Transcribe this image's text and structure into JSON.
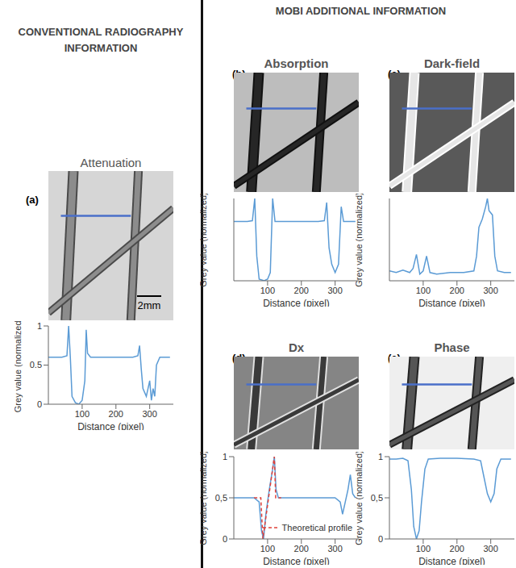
{
  "headings": {
    "left": "CONVENTIONAL RADIOGRAPHY INFORMATION",
    "right": "MOBI ADDITIONAL INFORMATION"
  },
  "scale_bar": "2mm",
  "chart_data": [
    {
      "type": "line",
      "panel": "(a)",
      "title": "Attenuation",
      "x_label": "Distance (pixel)",
      "y_label": "Grey value (normalized)",
      "xlim": [
        0,
        370
      ],
      "xticks": [
        100,
        200,
        300
      ],
      "ylim": [
        0,
        1
      ],
      "yticks": [
        0,
        {
          "value": 0.5,
          "label": "0.5"
        },
        1
      ],
      "grid": false,
      "series": [
        {
          "color": "#5b9bd5",
          "line_style": "solid",
          "x": [
            0,
            20,
            40,
            55,
            60,
            65,
            70,
            80,
            90,
            100,
            108,
            112,
            116,
            125,
            150,
            200,
            250,
            265,
            270,
            275,
            280,
            290,
            300,
            305,
            310,
            315,
            320,
            330,
            350,
            360
          ],
          "values": [
            0.6,
            0.6,
            0.6,
            0.62,
            1.0,
            0.6,
            0.1,
            0.02,
            0.0,
            0.05,
            0.3,
            0.95,
            0.65,
            0.6,
            0.6,
            0.6,
            0.6,
            0.62,
            0.75,
            0.45,
            0.2,
            0.1,
            0.3,
            0.05,
            0.2,
            0.1,
            0.5,
            0.6,
            0.6,
            0.6
          ]
        }
      ]
    },
    {
      "type": "line",
      "panel": "(b)",
      "title": "Absorption",
      "x_label": "Distance (pixel)",
      "y_label": "Grey value (normalized)",
      "xlim": [
        0,
        370
      ],
      "xticks": [
        100,
        200,
        300
      ],
      "ylim": [
        0,
        1
      ],
      "yticks": [
        1
      ],
      "grid": false,
      "series": [
        {
          "color": "#5b9bd5",
          "line_style": "solid",
          "x": [
            0,
            20,
            40,
            55,
            62,
            68,
            75,
            90,
            100,
            108,
            115,
            122,
            150,
            200,
            250,
            268,
            275,
            282,
            290,
            300,
            310,
            318,
            325,
            340,
            360
          ],
          "values": [
            0.72,
            0.72,
            0.72,
            0.73,
            1.0,
            0.3,
            0.02,
            0.0,
            0.02,
            0.1,
            1.0,
            0.72,
            0.72,
            0.72,
            0.72,
            0.73,
            0.95,
            0.4,
            0.2,
            0.1,
            0.2,
            0.9,
            0.72,
            0.72,
            0.72
          ]
        }
      ]
    },
    {
      "type": "line",
      "panel": "(c)",
      "title": "Dark-field",
      "x_label": "Distance (pixel)",
      "y_label": "Grey value (normalized)",
      "xlim": [
        0,
        370
      ],
      "xticks": [
        100,
        200,
        300
      ],
      "ylim": [
        0,
        1
      ],
      "yticks": [
        1
      ],
      "grid": false,
      "series": [
        {
          "color": "#5b9bd5",
          "line_style": "solid",
          "x": [
            0,
            20,
            40,
            60,
            70,
            80,
            90,
            100,
            110,
            120,
            140,
            180,
            220,
            250,
            258,
            265,
            275,
            285,
            290,
            295,
            305,
            312,
            320,
            340,
            360
          ],
          "values": [
            0.12,
            0.1,
            0.13,
            0.1,
            0.15,
            0.32,
            0.08,
            0.12,
            0.3,
            0.1,
            0.08,
            0.1,
            0.1,
            0.12,
            0.3,
            0.65,
            0.75,
            0.9,
            1.0,
            0.85,
            0.8,
            0.3,
            0.12,
            0.1,
            0.1
          ]
        }
      ]
    },
    {
      "type": "line",
      "panel": "(d)",
      "title": "Dx",
      "x_label": "Distance (pixel)",
      "y_label": "Grey value (normalized)",
      "xlim": [
        0,
        370
      ],
      "xticks": [
        100,
        200,
        300
      ],
      "ylim": [
        0,
        1
      ],
      "yticks": [
        0,
        {
          "value": 0.5,
          "label": "0,5"
        },
        1
      ],
      "grid": false,
      "legend": "lower right",
      "series": [
        {
          "color": "#5b9bd5",
          "line_style": "solid",
          "x": [
            0,
            20,
            40,
            60,
            75,
            82,
            88,
            95,
            105,
            115,
            120,
            125,
            132,
            150,
            200,
            250,
            300,
            315,
            322,
            330,
            338,
            345,
            352,
            360
          ],
          "values": [
            0.5,
            0.5,
            0.5,
            0.5,
            0.45,
            0.1,
            0.0,
            0.3,
            0.6,
            0.85,
            1.0,
            0.6,
            0.5,
            0.5,
            0.5,
            0.5,
            0.5,
            0.45,
            0.3,
            0.45,
            0.6,
            0.78,
            0.55,
            0.5
          ]
        },
        {
          "name": "Theoretical profile",
          "color": "#e0403a",
          "line_style": "dashed",
          "x": [
            60,
            80,
            86,
            120,
            124,
            140
          ],
          "values": [
            0.5,
            0.5,
            0.0,
            1.0,
            0.5,
            0.5
          ]
        }
      ]
    },
    {
      "type": "line",
      "panel": "(e)",
      "title": "Phase",
      "x_label": "Distance (pixel)",
      "y_label": "Grey value (normalized)",
      "xlim": [
        0,
        370
      ],
      "xticks": [
        100,
        200,
        300
      ],
      "ylim": [
        0,
        1
      ],
      "yticks": [
        0,
        {
          "value": 0.5,
          "label": "0,5"
        },
        1
      ],
      "grid": false,
      "series": [
        {
          "color": "#5b9bd5",
          "line_style": "solid",
          "x": [
            0,
            20,
            40,
            55,
            65,
            72,
            80,
            88,
            95,
            105,
            115,
            150,
            200,
            250,
            270,
            280,
            290,
            300,
            310,
            318,
            330,
            360
          ],
          "values": [
            0.97,
            0.97,
            0.98,
            0.95,
            0.6,
            0.15,
            0.0,
            0.1,
            0.45,
            0.85,
            0.97,
            0.98,
            0.98,
            0.97,
            0.95,
            0.75,
            0.55,
            0.45,
            0.55,
            0.85,
            0.97,
            0.97
          ]
        }
      ]
    }
  ]
}
